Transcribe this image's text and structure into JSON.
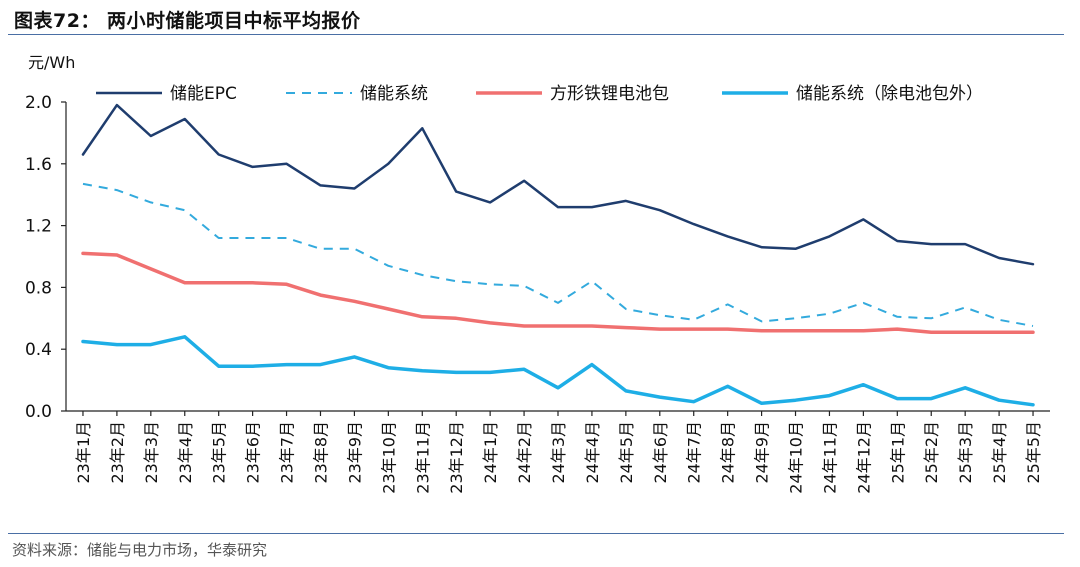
{
  "title": "图表72：  两小时储能项目中标平均报价",
  "source": "资料来源：储能与电力市场，华泰研究",
  "chart_data": {
    "type": "line",
    "ylabel": "元/Wh",
    "ylim": [
      0,
      2.0
    ],
    "yticks": [
      "0.0",
      "0.4",
      "0.8",
      "1.2",
      "1.6",
      "2.0"
    ],
    "grid": false,
    "legend_position": "top",
    "categories": [
      "23年1月",
      "23年2月",
      "23年3月",
      "23年4月",
      "23年5月",
      "23年6月",
      "23年7月",
      "23年8月",
      "23年9月",
      "23年10月",
      "23年11月",
      "23年12月",
      "24年1月",
      "24年2月",
      "24年3月",
      "24年4月",
      "24年5月",
      "24年6月",
      "24年7月",
      "24年8月",
      "24年9月",
      "24年10月",
      "24年11月",
      "24年12月",
      "25年1月",
      "25年2月",
      "25年3月",
      "25年4月",
      "25年5月"
    ],
    "series": [
      {
        "name": "储能EPC",
        "color": "#1f3d6e",
        "style": "solid",
        "width": 2.5,
        "values": [
          1.66,
          1.98,
          1.78,
          1.89,
          1.66,
          1.58,
          1.6,
          1.46,
          1.44,
          1.6,
          1.83,
          1.42,
          1.35,
          1.49,
          1.32,
          1.32,
          1.36,
          1.3,
          1.21,
          1.13,
          1.06,
          1.05,
          1.13,
          1.24,
          1.1,
          1.08,
          1.08,
          0.99,
          0.95
        ]
      },
      {
        "name": "储能系统",
        "color": "#33aadd",
        "style": "dashed",
        "width": 2,
        "values": [
          1.47,
          1.43,
          1.35,
          1.3,
          1.12,
          1.12,
          1.12,
          1.05,
          1.05,
          0.94,
          0.88,
          0.84,
          0.82,
          0.81,
          0.7,
          0.84,
          0.66,
          0.62,
          0.59,
          0.69,
          0.58,
          0.6,
          0.63,
          0.7,
          0.61,
          0.6,
          0.67,
          0.59,
          0.55
        ]
      },
      {
        "name": "方形铁锂电池包",
        "color": "#f07070",
        "style": "solid",
        "width": 3.5,
        "values": [
          1.02,
          1.01,
          0.92,
          0.83,
          0.83,
          0.83,
          0.82,
          0.75,
          0.71,
          0.66,
          0.61,
          0.6,
          0.57,
          0.55,
          0.55,
          0.55,
          0.54,
          0.53,
          0.53,
          0.53,
          0.52,
          0.52,
          0.52,
          0.52,
          0.53,
          0.51,
          0.51,
          0.51,
          0.51
        ]
      },
      {
        "name": "储能系统（除电池包外）",
        "color": "#1eaee6",
        "style": "solid",
        "width": 3.5,
        "values": [
          0.45,
          0.43,
          0.43,
          0.48,
          0.29,
          0.29,
          0.3,
          0.3,
          0.35,
          0.28,
          0.26,
          0.25,
          0.25,
          0.27,
          0.15,
          0.3,
          0.13,
          0.09,
          0.06,
          0.16,
          0.05,
          0.07,
          0.1,
          0.17,
          0.08,
          0.08,
          0.15,
          0.07,
          0.04
        ]
      }
    ]
  }
}
